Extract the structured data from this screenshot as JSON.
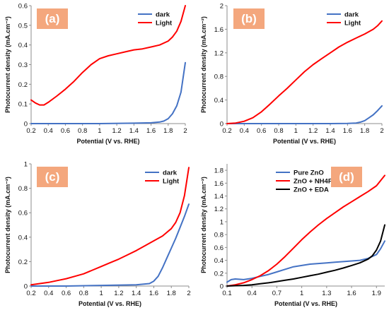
{
  "chart_data": [
    {
      "panel_label": "(a)",
      "type": "line",
      "xlabel": "Potential (V vs. RHE)",
      "ylabel": "Photocurrent density (mA.cm⁻²)",
      "xlim": [
        0.2,
        2.0
      ],
      "ylim": [
        0,
        0.6
      ],
      "xticks": [
        "0.2",
        "0.4",
        "0.6",
        "0.8",
        "1",
        "1.2",
        "1.4",
        "1.6",
        "1.8",
        "2"
      ],
      "yticks": [
        "0",
        "0.1",
        "0.2",
        "0.3",
        "0.4",
        "0.5",
        "0.6"
      ],
      "legend_position": "top-right",
      "series": [
        {
          "name": "dark",
          "color": "#4472c4",
          "x": [
            0.2,
            0.6,
            1.0,
            1.4,
            1.6,
            1.7,
            1.75,
            1.8,
            1.85,
            1.9,
            1.95,
            2.0
          ],
          "y": [
            0.0,
            0.0,
            0.0,
            0.002,
            0.004,
            0.008,
            0.013,
            0.025,
            0.05,
            0.09,
            0.16,
            0.31
          ]
        },
        {
          "name": "Light",
          "color": "#ff0000",
          "x": [
            0.2,
            0.25,
            0.3,
            0.35,
            0.4,
            0.5,
            0.6,
            0.7,
            0.8,
            0.9,
            1.0,
            1.1,
            1.2,
            1.3,
            1.4,
            1.5,
            1.6,
            1.7,
            1.8,
            1.85,
            1.9,
            1.95,
            2.0
          ],
          "y": [
            0.12,
            0.105,
            0.095,
            0.095,
            0.108,
            0.14,
            0.175,
            0.215,
            0.26,
            0.3,
            0.33,
            0.345,
            0.355,
            0.365,
            0.375,
            0.38,
            0.39,
            0.4,
            0.42,
            0.44,
            0.47,
            0.52,
            0.6
          ]
        }
      ]
    },
    {
      "panel_label": "(b)",
      "type": "line",
      "xlabel": "Potential (V vs. RHE)",
      "ylabel": "Photocurrent density (mA.cm⁻²)",
      "xlim": [
        0.2,
        2.0
      ],
      "ylim": [
        0,
        2
      ],
      "xticks": [
        "0.2",
        "0.4",
        "0.6",
        "0.8",
        "1",
        "1.2",
        "1.4",
        "1.6",
        "1.8",
        "2"
      ],
      "yticks": [
        "0",
        "0.4",
        "0.8",
        "1.2",
        "1.6",
        "2"
      ],
      "legend_position": "top-right",
      "series": [
        {
          "name": "dark",
          "color": "#4472c4",
          "x": [
            0.2,
            0.6,
            1.0,
            1.4,
            1.6,
            1.7,
            1.75,
            1.8,
            1.85,
            1.9,
            1.95,
            2.0
          ],
          "y": [
            0.0,
            0.0,
            0.0,
            0.0,
            0.002,
            0.01,
            0.025,
            0.05,
            0.1,
            0.15,
            0.22,
            0.3
          ]
        },
        {
          "name": "Light",
          "color": "#ff0000",
          "x": [
            0.2,
            0.3,
            0.4,
            0.5,
            0.6,
            0.7,
            0.8,
            0.9,
            1.0,
            1.1,
            1.2,
            1.3,
            1.4,
            1.5,
            1.6,
            1.7,
            1.8,
            1.9,
            1.95,
            2.0
          ],
          "y": [
            0.0,
            0.01,
            0.04,
            0.1,
            0.2,
            0.33,
            0.47,
            0.6,
            0.74,
            0.88,
            1.0,
            1.1,
            1.2,
            1.3,
            1.38,
            1.45,
            1.52,
            1.6,
            1.66,
            1.74
          ]
        }
      ]
    },
    {
      "panel_label": "(c)",
      "type": "line",
      "xlabel": "Potential (V vs. RHE)",
      "ylabel": "Photocurrent density (mA.cm⁻²)",
      "xlim": [
        0.2,
        2.0
      ],
      "ylim": [
        0,
        1
      ],
      "xticks": [
        "0.2",
        "0.4",
        "0.6",
        "0.8",
        "1",
        "1.2",
        "1.4",
        "1.6",
        "1.8",
        "2"
      ],
      "yticks": [
        "0",
        "0.2",
        "0.4",
        "0.6",
        "0.8",
        "1"
      ],
      "legend_position": "top-right",
      "series": [
        {
          "name": "dark",
          "color": "#4472c4",
          "x": [
            0.2,
            0.6,
            1.0,
            1.4,
            1.55,
            1.6,
            1.65,
            1.7,
            1.75,
            1.8,
            1.85,
            1.9,
            1.95,
            2.0
          ],
          "y": [
            0.0,
            0.0,
            0.005,
            0.01,
            0.02,
            0.04,
            0.08,
            0.15,
            0.23,
            0.31,
            0.39,
            0.48,
            0.57,
            0.67
          ]
        },
        {
          "name": "Light",
          "color": "#ff0000",
          "x": [
            0.2,
            0.3,
            0.4,
            0.5,
            0.6,
            0.7,
            0.8,
            0.9,
            1.0,
            1.1,
            1.2,
            1.3,
            1.4,
            1.5,
            1.6,
            1.7,
            1.8,
            1.85,
            1.9,
            1.95,
            2.0
          ],
          "y": [
            0.01,
            0.02,
            0.03,
            0.045,
            0.06,
            0.08,
            0.1,
            0.13,
            0.16,
            0.19,
            0.22,
            0.255,
            0.29,
            0.33,
            0.37,
            0.41,
            0.47,
            0.52,
            0.6,
            0.74,
            0.97
          ]
        }
      ]
    },
    {
      "panel_label": "(d)",
      "type": "line",
      "xlabel": "Potential (V vs. RHE)",
      "ylabel": "Photocurrent density (mA.cm⁻²)",
      "xlim": [
        0.1,
        2.0
      ],
      "ylim": [
        0,
        1.9
      ],
      "xticks": [
        "0.1",
        "0.4",
        "0.7",
        "1",
        "1.3",
        "1.6",
        "1.9"
      ],
      "xtick_values": [
        0.1,
        0.4,
        0.7,
        1.0,
        1.3,
        1.6,
        1.9
      ],
      "yticks": [
        "0",
        "0.2",
        "0.4",
        "0.6",
        "0.8",
        "1",
        "1.2",
        "1.4",
        "1.6",
        "1.8"
      ],
      "legend_position": "top-left",
      "series": [
        {
          "name": "Pure ZnO",
          "color": "#4472c4",
          "x": [
            0.1,
            0.15,
            0.2,
            0.3,
            0.4,
            0.5,
            0.6,
            0.7,
            0.8,
            0.9,
            1.0,
            1.1,
            1.2,
            1.3,
            1.4,
            1.5,
            1.6,
            1.7,
            1.8,
            1.9,
            1.95,
            2.0
          ],
          "y": [
            0.06,
            0.1,
            0.11,
            0.1,
            0.12,
            0.15,
            0.18,
            0.22,
            0.26,
            0.3,
            0.32,
            0.34,
            0.35,
            0.36,
            0.37,
            0.38,
            0.39,
            0.4,
            0.43,
            0.49,
            0.58,
            0.7
          ]
        },
        {
          "name": "ZnO + NH4F",
          "color": "#ff0000",
          "x": [
            0.1,
            0.2,
            0.3,
            0.4,
            0.5,
            0.6,
            0.7,
            0.8,
            0.9,
            1.0,
            1.1,
            1.2,
            1.3,
            1.4,
            1.5,
            1.6,
            1.7,
            1.8,
            1.9,
            1.95,
            2.0
          ],
          "y": [
            0.0,
            0.02,
            0.05,
            0.1,
            0.16,
            0.24,
            0.34,
            0.46,
            0.59,
            0.72,
            0.84,
            0.95,
            1.05,
            1.14,
            1.23,
            1.31,
            1.39,
            1.47,
            1.56,
            1.64,
            1.72
          ]
        },
        {
          "name": "ZnO + EDA",
          "color": "#000000",
          "x": [
            0.1,
            0.2,
            0.3,
            0.4,
            0.5,
            0.6,
            0.7,
            0.8,
            0.9,
            1.0,
            1.1,
            1.2,
            1.3,
            1.4,
            1.5,
            1.6,
            1.7,
            1.8,
            1.85,
            1.9,
            1.95,
            2.0
          ],
          "y": [
            0.0,
            0.005,
            0.01,
            0.02,
            0.035,
            0.05,
            0.07,
            0.09,
            0.11,
            0.135,
            0.16,
            0.185,
            0.215,
            0.245,
            0.28,
            0.32,
            0.36,
            0.42,
            0.47,
            0.56,
            0.7,
            0.95
          ]
        }
      ]
    }
  ]
}
